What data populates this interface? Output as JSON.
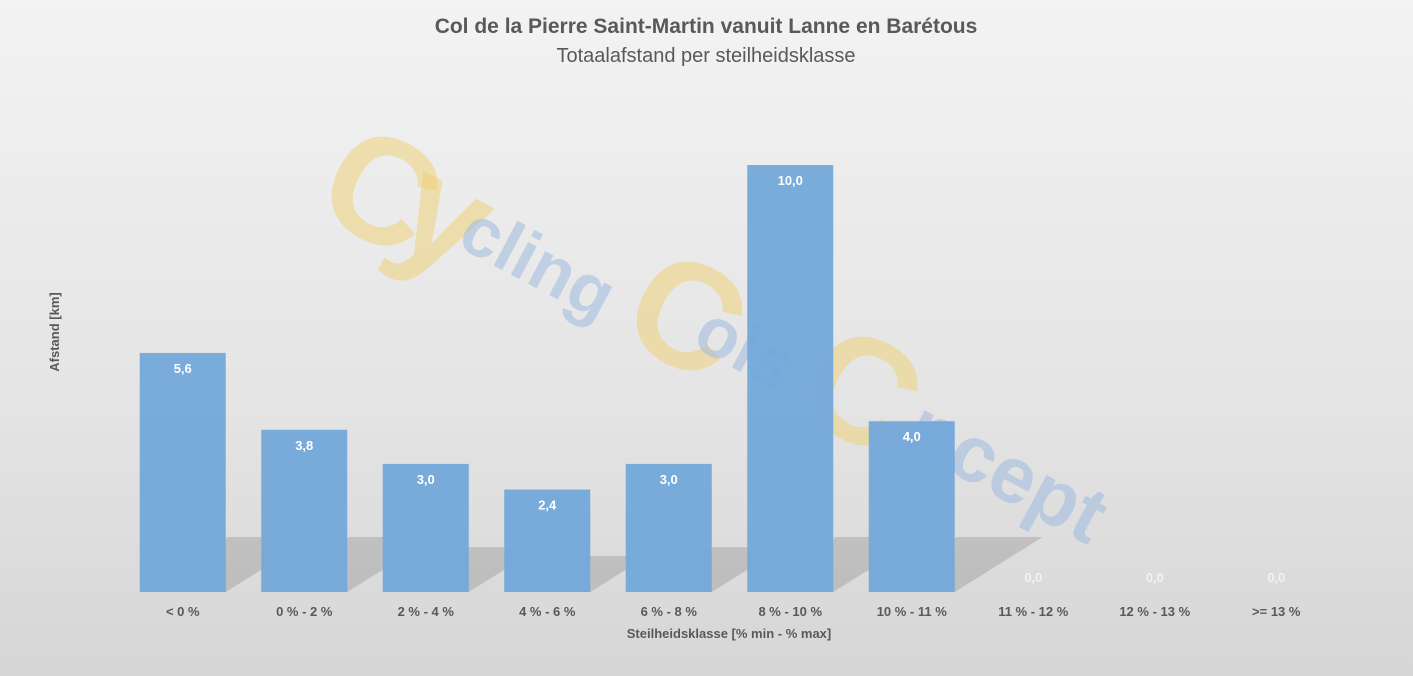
{
  "chart_data": {
    "type": "bar",
    "title": "Col de la Pierre Saint-Martin vanuit Lanne en Barétous",
    "subtitle": "Totaalafstand per steilheidsklasse",
    "xlabel": "Steilheidsklasse [% min - % max]",
    "ylabel": "Afstand [km]",
    "categories": [
      "< 0 %",
      "0 % - 2 %",
      "2 % - 4 %",
      "4 % - 6 %",
      "6 % - 8 %",
      "8 % - 10 %",
      "10 % - 11 %",
      "11 % - 12 %",
      "12 % - 13 %",
      ">= 13 %"
    ],
    "values": [
      5.6,
      3.8,
      3.0,
      2.4,
      3.0,
      10.0,
      4.0,
      0.0,
      0.0,
      0.0
    ],
    "data_labels": [
      "5,6",
      "3,8",
      "3,0",
      "2,4",
      "3,0",
      "10,0",
      "4,0",
      "0,0",
      "0,0",
      "0,0"
    ],
    "ylim": [
      0,
      10.4
    ],
    "grid": false,
    "legend": "none",
    "bar_color": "#75a8da",
    "label_color_inside": "#ffffff",
    "label_color_outside": "#f2f2f2"
  },
  "watermark": {
    "big_letters": [
      "C",
      "y",
      "C",
      "C"
    ],
    "small_words": [
      "cling",
      "ols",
      "ncept"
    ],
    "yellow": "#f0d27a",
    "blue": "#9fbbdf"
  }
}
